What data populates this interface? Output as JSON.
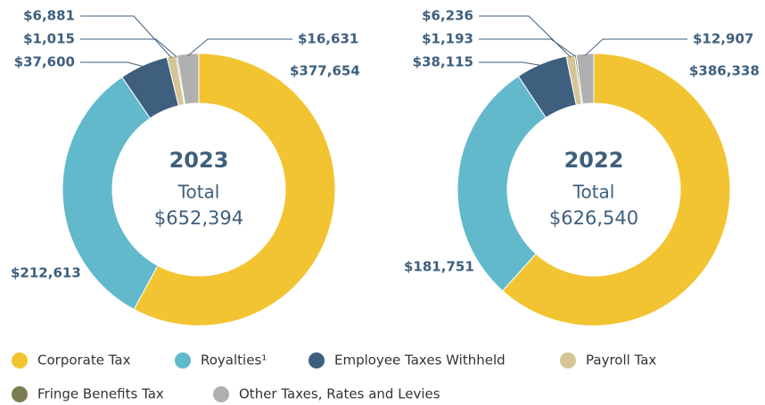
{
  "chart_data": [
    {
      "type": "pie",
      "title": "2023",
      "center_label": "Total",
      "center_value": "$652,394",
      "categories": [
        "Corporate Tax",
        "Royalties¹",
        "Employee Taxes Withheld",
        "Payroll Tax",
        "Fringe Benefits Tax",
        "Other Taxes, Rates and Levies"
      ],
      "colors": [
        "#f2c431",
        "#62b9cc",
        "#3e5f7d",
        "#d4c596",
        "#7a7d4e",
        "#b0b0b0"
      ],
      "values": [
        377654,
        212613,
        37600,
        6881,
        1015,
        16631
      ],
      "value_labels": [
        "$377,654",
        "$212,613",
        "$37,600",
        "$6,881",
        "$1,015",
        "$16,631"
      ]
    },
    {
      "type": "pie",
      "title": "2022",
      "center_label": "Total",
      "center_value": "$626,540",
      "categories": [
        "Corporate Tax",
        "Royalties¹",
        "Employee Taxes Withheld",
        "Payroll Tax",
        "Fringe Benefits Tax",
        "Other Taxes, Rates and Levies"
      ],
      "colors": [
        "#f2c431",
        "#62b9cc",
        "#3e5f7d",
        "#d4c596",
        "#7a7d4e",
        "#b0b0b0"
      ],
      "values": [
        386338,
        181751,
        38115,
        6236,
        1193,
        12907
      ],
      "value_labels": [
        "$386,338",
        "$181,751",
        "$38,115",
        "$6,236",
        "$1,193",
        "$12,907"
      ]
    }
  ]
}
